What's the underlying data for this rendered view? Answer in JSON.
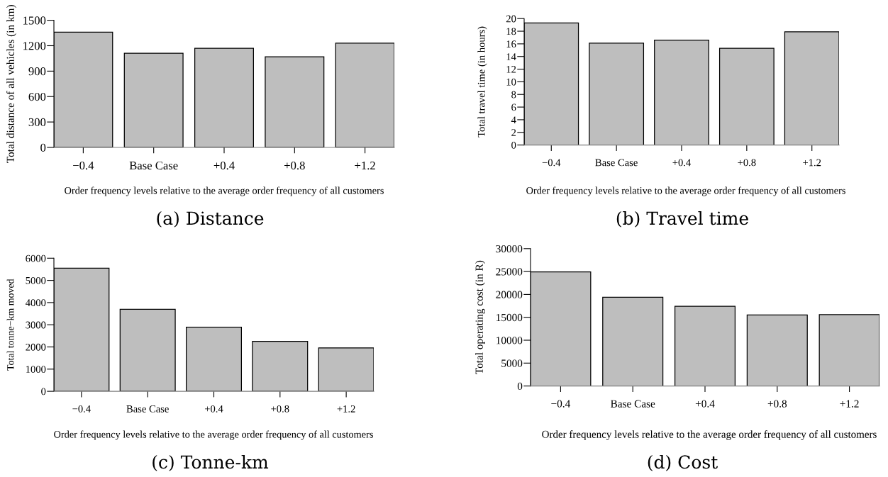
{
  "chart_data": [
    {
      "type": "bar",
      "title": "(a) Distance",
      "xlabel": "Order frequency levels relative to the average order frequency of all customers",
      "ylabel": "Total distance of all vehicles (in km)",
      "categories": [
        "−0.4",
        "Base Case",
        "+0.4",
        "+0.8",
        "+1.2"
      ],
      "values": [
        1360,
        1110,
        1170,
        1070,
        1230
      ],
      "color": "#bebebe",
      "ylim": [
        0,
        1500
      ],
      "yticks": [
        0,
        300,
        600,
        900,
        1200,
        1500
      ]
    },
    {
      "type": "bar",
      "title": "(b) Travel time",
      "xlabel": "Order frequency levels relative to the average order frequency of all customers",
      "ylabel": "Total travel time (in hours)",
      "categories": [
        "−0.4",
        "Base Case",
        "+0.4",
        "+0.8",
        "+1.2"
      ],
      "values": [
        19.3,
        16.1,
        16.6,
        15.3,
        17.9
      ],
      "color": "#bebebe",
      "ylim": [
        0,
        20
      ],
      "yticks": [
        0,
        2,
        4,
        6,
        8,
        10,
        12,
        14,
        16,
        18,
        20
      ]
    },
    {
      "type": "bar",
      "title": "(c) Tonne-km",
      "xlabel": "Order frequency levels relative to the average order frequency of all customers",
      "ylabel": "Total tonne−km moved",
      "categories": [
        "−0.4",
        "Base Case",
        "+0.4",
        "+0.8",
        "+1.2"
      ],
      "values": [
        5550,
        3700,
        2890,
        2250,
        1960
      ],
      "color": "#bebebe",
      "ylim": [
        0,
        6000
      ],
      "yticks": [
        0,
        1000,
        2000,
        3000,
        4000,
        5000,
        6000
      ]
    },
    {
      "type": "bar",
      "title": "(d) Cost",
      "xlabel": "Order frequency levels relative to the average order frequency of all customers",
      "ylabel": "Total operating cost (in R)",
      "categories": [
        "−0.4",
        "Base Case",
        "+0.4",
        "+0.8",
        "+1.2"
      ],
      "values": [
        24900,
        19400,
        17400,
        15500,
        15600
      ],
      "color": "#bebebe",
      "ylim": [
        0,
        30000
      ],
      "yticks": [
        0,
        5000,
        10000,
        15000,
        20000,
        25000,
        30000
      ]
    }
  ]
}
